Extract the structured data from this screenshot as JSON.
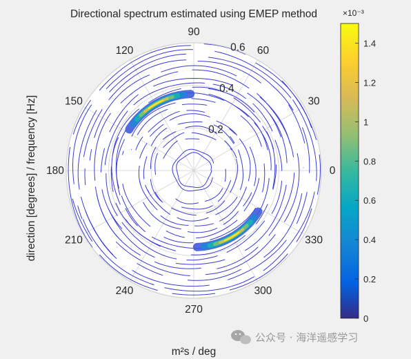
{
  "chart_data": {
    "type": "polar-contour",
    "title": "Directional spectrum estimated using  EMEP method",
    "ylabel": "direction [degrees] / frequency [Hz]",
    "colorbar_label": "m²s / deg",
    "colorbar_exponent_label": "×10⁻³",
    "colorbar_exponent": -3,
    "colorbar_range": [
      0,
      1.5
    ],
    "colorbar_ticks": [
      "0",
      "0.2",
      "0.4",
      "0.6",
      "0.8",
      "1",
      "1.2",
      "1.4"
    ],
    "theta_ticks": [
      "0",
      "30",
      "60",
      "90",
      "120",
      "150",
      "180",
      "210",
      "240",
      "270",
      "300",
      "330"
    ],
    "r_ticks": [
      "0.2",
      "0.4",
      "0.6"
    ],
    "r_max": 0.6,
    "colormap": "parula",
    "colors": {
      "contour_low": "#3a3ad6",
      "grid": "#d9d9d9",
      "axes_bg": "#ffffff",
      "figure_bg": "#f0f0f0"
    },
    "peaks": [
      {
        "direction_deg": 120,
        "frequency_hz": 0.36,
        "value_e3": 1.45
      },
      {
        "direction_deg": 300,
        "frequency_hz": 0.36,
        "value_e3": 1.45
      }
    ]
  },
  "watermark": {
    "text": "公众号 · 海洋遥感学习"
  }
}
